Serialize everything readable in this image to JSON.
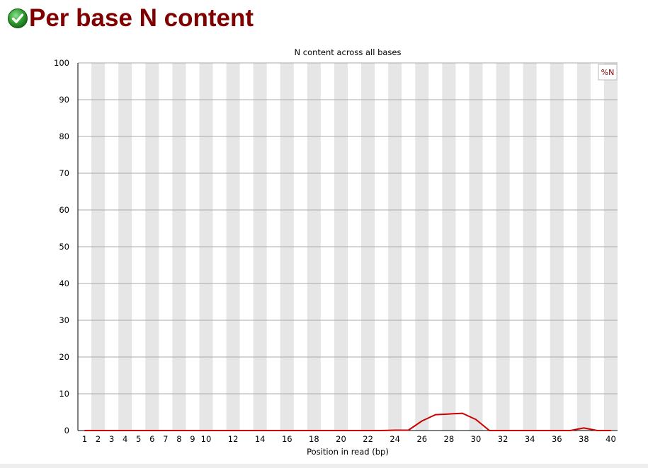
{
  "header": {
    "title": "Per base N content",
    "status_icon": "check-circle-icon",
    "status_color": "#2e9e2e"
  },
  "chart_data": {
    "type": "line",
    "title": "N content across all bases",
    "xlabel": "Position in read (bp)",
    "ylabel": "",
    "ylim": [
      0,
      100
    ],
    "yticks": [
      0,
      10,
      20,
      30,
      40,
      50,
      60,
      70,
      80,
      90,
      100
    ],
    "categories": [
      "1",
      "2",
      "3",
      "4",
      "5",
      "6",
      "7",
      "8",
      "9",
      "10",
      "11",
      "12",
      "13",
      "14",
      "15",
      "16",
      "17",
      "18",
      "19",
      "20",
      "21",
      "22",
      "23",
      "24",
      "25",
      "26",
      "27",
      "28",
      "29",
      "30",
      "31",
      "32",
      "33",
      "34",
      "35",
      "36",
      "37",
      "38",
      "39",
      "40"
    ],
    "xtick_labels": [
      "1",
      "2",
      "3",
      "4",
      "5",
      "6",
      "7",
      "8",
      "9",
      "10",
      "",
      "12",
      "",
      "14",
      "",
      "16",
      "",
      "18",
      "",
      "20",
      "",
      "22",
      "",
      "24",
      "",
      "26",
      "",
      "28",
      "",
      "30",
      "",
      "32",
      "",
      "34",
      "",
      "36",
      "",
      "38",
      "",
      "40"
    ],
    "series": [
      {
        "name": "%N",
        "color": "#cc0000",
        "values": [
          0,
          0,
          0,
          0,
          0,
          0,
          0,
          0,
          0,
          0,
          0,
          0,
          0,
          0,
          0,
          0,
          0,
          0,
          0,
          0,
          0,
          0,
          0,
          0.1,
          0.1,
          2.6,
          4.3,
          4.5,
          4.7,
          3.0,
          0,
          0,
          0,
          0,
          0,
          0,
          0,
          0.7,
          0,
          0
        ]
      }
    ],
    "legend_position": "top-right",
    "grid": true,
    "alternating_bands": true,
    "band_color": "#e6e6e6",
    "gridline_color": "#aaaaaa"
  }
}
